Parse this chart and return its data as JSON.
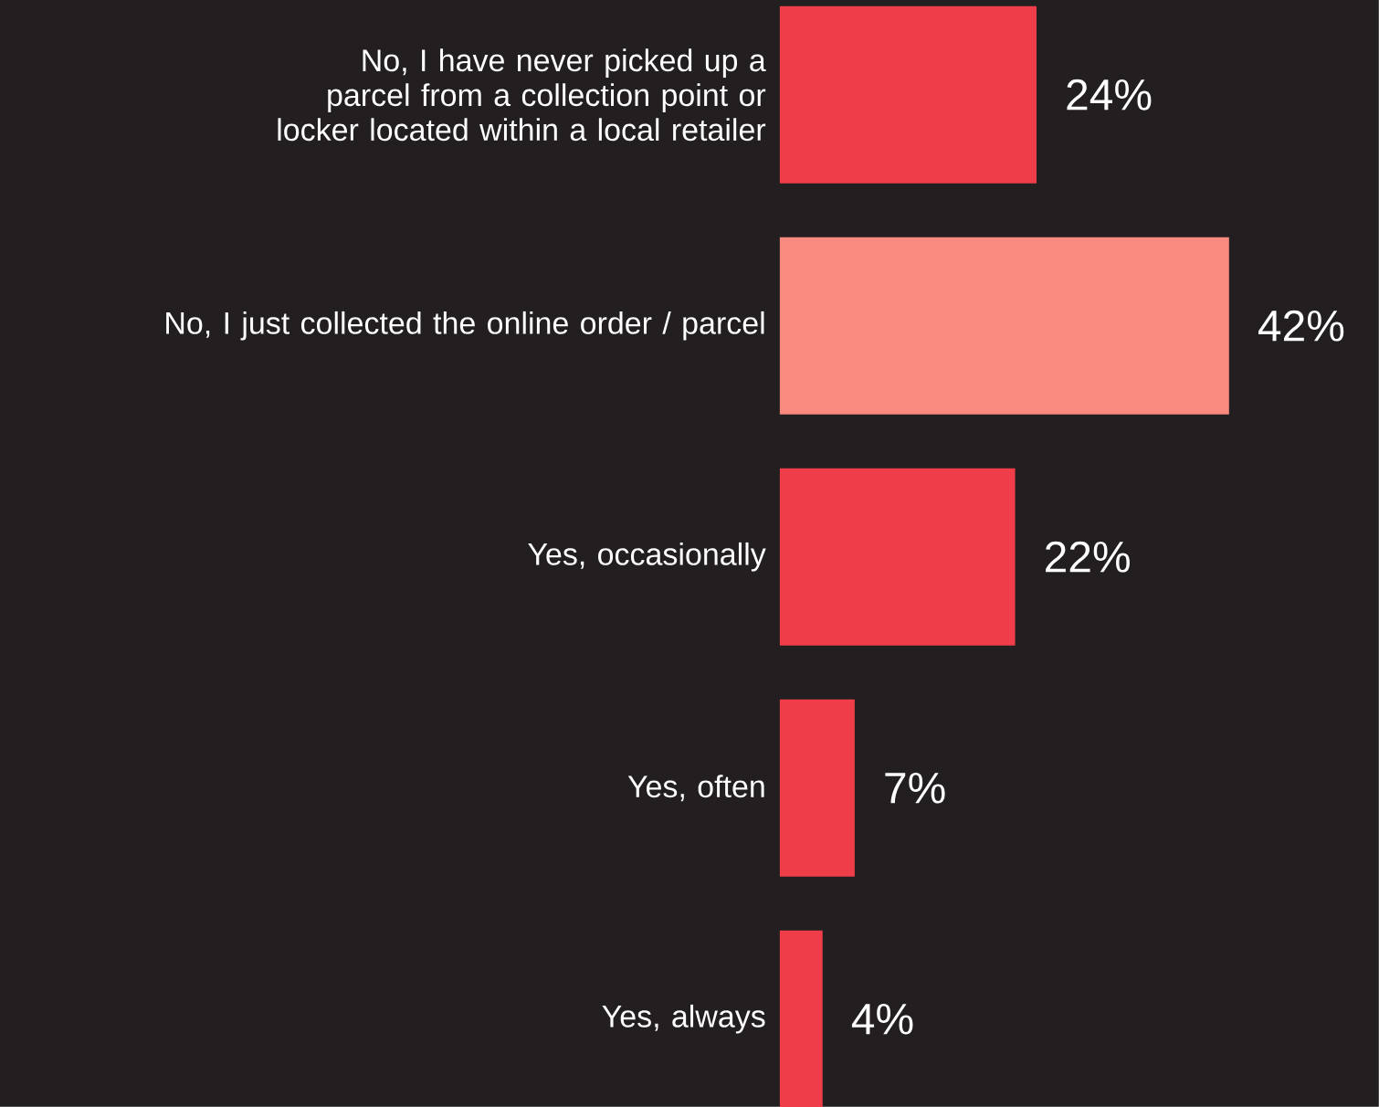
{
  "chart_data": {
    "type": "bar",
    "orientation": "horizontal",
    "categories": [
      "No, I have never picked up a parcel from a collection point or locker located within a local retailer",
      "No, I just collected the online order / parcel",
      "Yes, occasionally",
      "Yes, often",
      "Yes, always"
    ],
    "values": [
      24,
      42,
      22,
      7,
      4
    ],
    "colors": [
      "#ef3e4a",
      "#f98a80",
      "#ef3e4a",
      "#ef3e4a",
      "#ef3e4a"
    ],
    "value_labels": [
      "24%",
      "42%",
      "22%",
      "7%",
      "4%"
    ]
  }
}
